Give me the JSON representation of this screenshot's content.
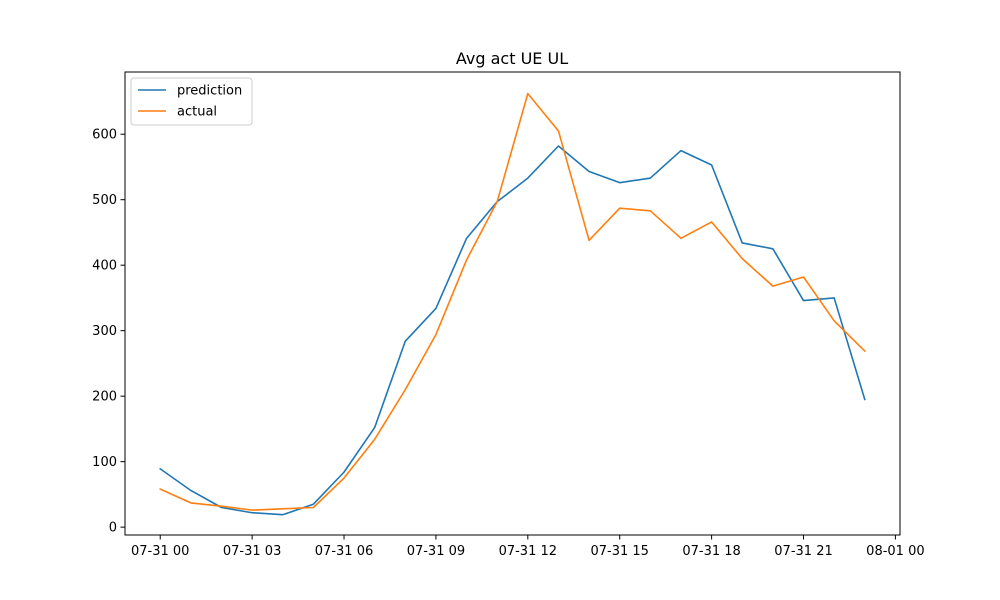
{
  "chart_data": {
    "type": "line",
    "title": "Avg act UE UL",
    "xlabel": "",
    "ylabel": "",
    "x": [
      "07-31 00:00",
      "07-31 01:00",
      "07-31 02:00",
      "07-31 03:00",
      "07-31 04:00",
      "07-31 05:00",
      "07-31 06:00",
      "07-31 07:00",
      "07-31 08:00",
      "07-31 09:00",
      "07-31 10:00",
      "07-31 11:00",
      "07-31 12:00",
      "07-31 13:00",
      "07-31 14:00",
      "07-31 15:00",
      "07-31 16:00",
      "07-31 17:00",
      "07-31 18:00",
      "07-31 19:00",
      "07-31 20:00",
      "07-31 21:00",
      "07-31 22:00",
      "07-31 23:00"
    ],
    "series": [
      {
        "name": "prediction",
        "color": "#1f77b4",
        "values": [
          89,
          56,
          30,
          22,
          19,
          35,
          84,
          152,
          284,
          334,
          441,
          497,
          533,
          582,
          543,
          526,
          533,
          575,
          553,
          434,
          425,
          346,
          350,
          195
        ]
      },
      {
        "name": "actual",
        "color": "#ff7f0e",
        "values": [
          58,
          37,
          32,
          26,
          28,
          30,
          75,
          134,
          210,
          294,
          408,
          497,
          662,
          605,
          438,
          487,
          483,
          441,
          466,
          410,
          368,
          382,
          315,
          269
        ]
      }
    ],
    "xticks": [
      "07-31 00",
      "07-31 03",
      "07-31 06",
      "07-31 09",
      "07-31 12",
      "07-31 15",
      "07-31 18",
      "07-31 21",
      "08-01 00"
    ],
    "yticks": [
      0,
      100,
      200,
      300,
      400,
      500,
      600
    ],
    "xlim": [
      "07-30 22:51",
      "08-01 00:09"
    ],
    "ylim": [
      -12,
      695
    ],
    "grid": false,
    "legend": "upper-left"
  }
}
